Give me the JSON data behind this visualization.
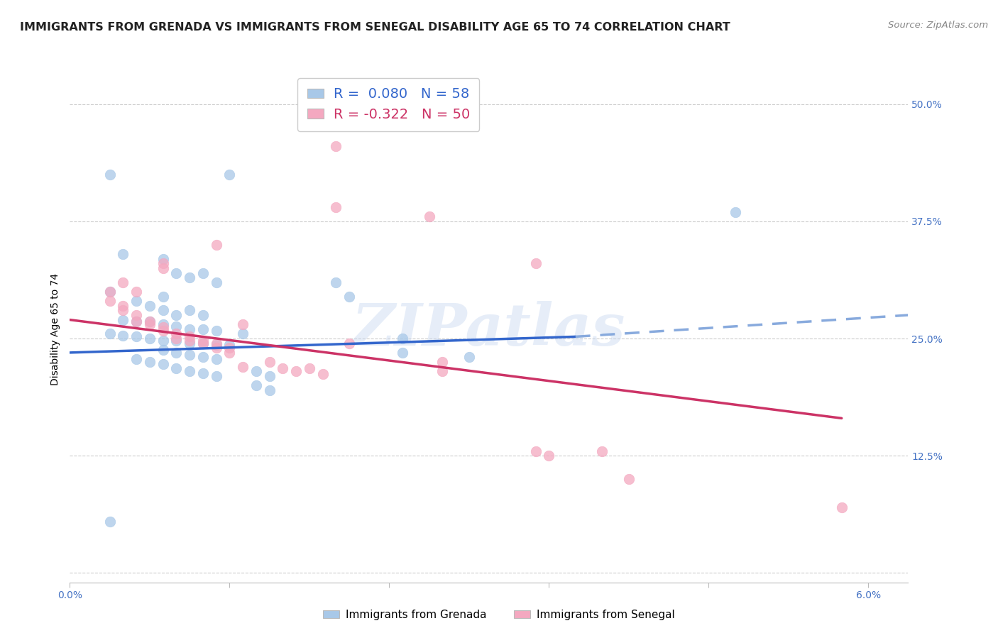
{
  "title": "IMMIGRANTS FROM GRENADA VS IMMIGRANTS FROM SENEGAL DISABILITY AGE 65 TO 74 CORRELATION CHART",
  "source": "Source: ZipAtlas.com",
  "ylabel": "Disability Age 65 to 74",
  "yticks": [
    0.0,
    0.125,
    0.25,
    0.375,
    0.5
  ],
  "ytick_labels": [
    "",
    "12.5%",
    "25.0%",
    "37.5%",
    "50.0%"
  ],
  "xticks": [
    0.0,
    0.012,
    0.024,
    0.036,
    0.048,
    0.06
  ],
  "xtick_labels": [
    "0.0%",
    "",
    "",
    "",
    "",
    "6.0%"
  ],
  "xlim": [
    0.0,
    0.063
  ],
  "ylim": [
    -0.01,
    0.53
  ],
  "blue_color": "#A8C8E8",
  "pink_color": "#F4A8C0",
  "blue_line_color": "#3366CC",
  "pink_line_color": "#CC3366",
  "dashed_line_color": "#88AADD",
  "tick_color": "#4472C4",
  "watermark": "ZIPatlas",
  "grenada_line_solid": {
    "x": [
      0.0,
      0.038
    ],
    "y": [
      0.235,
      0.252
    ]
  },
  "grenada_line_dashed": {
    "x": [
      0.038,
      0.063
    ],
    "y": [
      0.252,
      0.275
    ]
  },
  "senegal_line": {
    "x": [
      0.0,
      0.058
    ],
    "y": [
      0.27,
      0.165
    ]
  },
  "grenada_points": [
    [
      0.003,
      0.425
    ],
    [
      0.012,
      0.425
    ],
    [
      0.004,
      0.34
    ],
    [
      0.007,
      0.335
    ],
    [
      0.003,
      0.3
    ],
    [
      0.007,
      0.295
    ],
    [
      0.008,
      0.32
    ],
    [
      0.009,
      0.315
    ],
    [
      0.01,
      0.32
    ],
    [
      0.011,
      0.31
    ],
    [
      0.005,
      0.29
    ],
    [
      0.006,
      0.285
    ],
    [
      0.007,
      0.28
    ],
    [
      0.008,
      0.275
    ],
    [
      0.009,
      0.28
    ],
    [
      0.01,
      0.275
    ],
    [
      0.004,
      0.27
    ],
    [
      0.005,
      0.268
    ],
    [
      0.006,
      0.268
    ],
    [
      0.007,
      0.265
    ],
    [
      0.008,
      0.263
    ],
    [
      0.009,
      0.26
    ],
    [
      0.01,
      0.26
    ],
    [
      0.011,
      0.258
    ],
    [
      0.003,
      0.255
    ],
    [
      0.004,
      0.253
    ],
    [
      0.005,
      0.252
    ],
    [
      0.006,
      0.25
    ],
    [
      0.007,
      0.248
    ],
    [
      0.008,
      0.248
    ],
    [
      0.009,
      0.245
    ],
    [
      0.01,
      0.245
    ],
    [
      0.011,
      0.243
    ],
    [
      0.012,
      0.243
    ],
    [
      0.013,
      0.255
    ],
    [
      0.02,
      0.31
    ],
    [
      0.021,
      0.295
    ],
    [
      0.025,
      0.25
    ],
    [
      0.025,
      0.235
    ],
    [
      0.03,
      0.23
    ],
    [
      0.007,
      0.238
    ],
    [
      0.008,
      0.235
    ],
    [
      0.009,
      0.233
    ],
    [
      0.01,
      0.23
    ],
    [
      0.011,
      0.228
    ],
    [
      0.005,
      0.228
    ],
    [
      0.006,
      0.225
    ],
    [
      0.007,
      0.223
    ],
    [
      0.008,
      0.218
    ],
    [
      0.009,
      0.215
    ],
    [
      0.01,
      0.213
    ],
    [
      0.011,
      0.21
    ],
    [
      0.014,
      0.215
    ],
    [
      0.015,
      0.21
    ],
    [
      0.014,
      0.2
    ],
    [
      0.015,
      0.195
    ],
    [
      0.05,
      0.385
    ],
    [
      0.003,
      0.055
    ]
  ],
  "senegal_points": [
    [
      0.02,
      0.455
    ],
    [
      0.02,
      0.39
    ],
    [
      0.011,
      0.35
    ],
    [
      0.007,
      0.33
    ],
    [
      0.007,
      0.325
    ],
    [
      0.004,
      0.31
    ],
    [
      0.005,
      0.3
    ],
    [
      0.027,
      0.38
    ],
    [
      0.035,
      0.33
    ],
    [
      0.003,
      0.3
    ],
    [
      0.003,
      0.29
    ],
    [
      0.004,
      0.285
    ],
    [
      0.004,
      0.28
    ],
    [
      0.005,
      0.275
    ],
    [
      0.005,
      0.268
    ],
    [
      0.006,
      0.268
    ],
    [
      0.006,
      0.265
    ],
    [
      0.007,
      0.262
    ],
    [
      0.007,
      0.258
    ],
    [
      0.008,
      0.255
    ],
    [
      0.008,
      0.25
    ],
    [
      0.009,
      0.252
    ],
    [
      0.009,
      0.248
    ],
    [
      0.01,
      0.248
    ],
    [
      0.01,
      0.245
    ],
    [
      0.011,
      0.245
    ],
    [
      0.011,
      0.24
    ],
    [
      0.012,
      0.24
    ],
    [
      0.012,
      0.235
    ],
    [
      0.013,
      0.265
    ],
    [
      0.013,
      0.22
    ],
    [
      0.015,
      0.225
    ],
    [
      0.016,
      0.218
    ],
    [
      0.017,
      0.215
    ],
    [
      0.018,
      0.218
    ],
    [
      0.019,
      0.212
    ],
    [
      0.021,
      0.245
    ],
    [
      0.028,
      0.225
    ],
    [
      0.028,
      0.215
    ],
    [
      0.035,
      0.13
    ],
    [
      0.036,
      0.125
    ],
    [
      0.04,
      0.13
    ],
    [
      0.042,
      0.1
    ],
    [
      0.058,
      0.07
    ]
  ],
  "title_fontsize": 11.5,
  "axis_label_fontsize": 10,
  "tick_fontsize": 10,
  "legend_fontsize": 14,
  "source_fontsize": 9.5
}
